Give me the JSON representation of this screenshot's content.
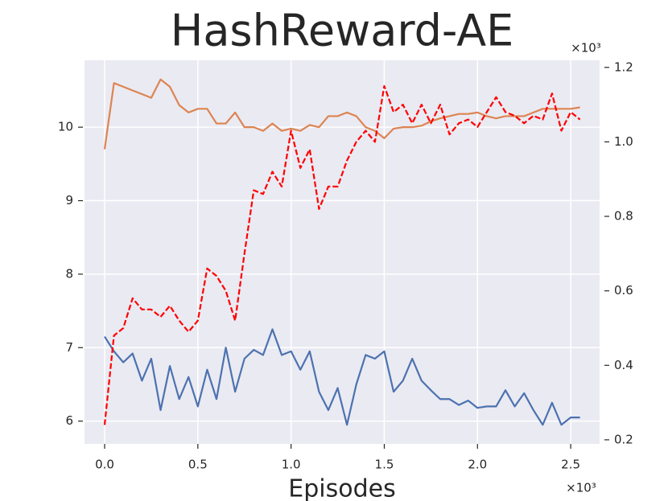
{
  "chart_data": {
    "type": "line",
    "title": "HashReward-AE",
    "x_label": "Episodes",
    "x_offset_label": "×10³",
    "y2_offset_label": "×10³",
    "x": [
      0,
      0.05,
      0.1,
      0.15,
      0.2,
      0.25,
      0.3,
      0.35,
      0.4,
      0.45,
      0.5,
      0.55,
      0.6,
      0.65,
      0.7,
      0.75,
      0.8,
      0.85,
      0.9,
      0.95,
      1.0,
      1.05,
      1.1,
      1.15,
      1.2,
      1.25,
      1.3,
      1.35,
      1.4,
      1.45,
      1.5,
      1.55,
      1.6,
      1.65,
      1.7,
      1.75,
      1.8,
      1.85,
      1.9,
      1.95,
      2.0,
      2.05,
      2.1,
      2.15,
      2.2,
      2.25,
      2.3,
      2.35,
      2.4,
      2.45,
      2.5,
      2.55
    ],
    "series": [
      {
        "color": "#4c72b0",
        "linestyle": "solid",
        "axis": "y",
        "values": [
          7.15,
          6.95,
          6.8,
          6.92,
          6.55,
          6.85,
          6.15,
          6.75,
          6.3,
          6.6,
          6.2,
          6.7,
          6.3,
          7.0,
          6.4,
          6.85,
          6.97,
          6.9,
          7.25,
          6.9,
          6.95,
          6.7,
          6.95,
          6.4,
          6.15,
          6.45,
          5.95,
          6.5,
          6.9,
          6.85,
          6.95,
          6.4,
          6.55,
          6.85,
          6.55,
          6.42,
          6.3,
          6.3,
          6.22,
          6.28,
          6.18,
          6.2,
          6.2,
          6.42,
          6.2,
          6.38,
          6.15,
          5.95,
          6.25,
          5.95,
          6.05,
          6.05
        ]
      },
      {
        "color": "#dd8452",
        "linestyle": "solid",
        "axis": "y",
        "values": [
          9.7,
          10.6,
          10.55,
          10.5,
          10.45,
          10.4,
          10.65,
          10.55,
          10.3,
          10.2,
          10.25,
          10.25,
          10.05,
          10.05,
          10.2,
          10.0,
          10.0,
          9.95,
          10.05,
          9.95,
          9.98,
          9.95,
          10.03,
          10.0,
          10.15,
          10.15,
          10.2,
          10.15,
          10.0,
          9.95,
          9.85,
          9.98,
          10.0,
          10.0,
          10.02,
          10.08,
          10.12,
          10.15,
          10.18,
          10.18,
          10.2,
          10.15,
          10.12,
          10.15,
          10.15,
          10.15,
          10.2,
          10.25,
          10.25,
          10.25,
          10.25,
          10.27
        ]
      },
      {
        "color": "#ff0000",
        "linestyle": "dashed",
        "axis": "y2",
        "values": [
          0.24,
          0.48,
          0.5,
          0.58,
          0.55,
          0.55,
          0.53,
          0.56,
          0.52,
          0.49,
          0.52,
          0.66,
          0.64,
          0.6,
          0.52,
          0.7,
          0.87,
          0.86,
          0.92,
          0.88,
          1.03,
          0.93,
          0.98,
          0.82,
          0.88,
          0.88,
          0.95,
          1.0,
          1.03,
          1.0,
          1.15,
          1.08,
          1.1,
          1.05,
          1.1,
          1.05,
          1.1,
          1.02,
          1.05,
          1.06,
          1.04,
          1.08,
          1.12,
          1.08,
          1.07,
          1.05,
          1.07,
          1.06,
          1.13,
          1.03,
          1.08,
          1.06
        ]
      }
    ],
    "xlim": [
      -0.108,
      2.655
    ],
    "xticks": [
      {
        "value": 0,
        "label": "0.0"
      },
      0.5,
      {
        "value": 1,
        "label": "1.0"
      },
      1.5,
      {
        "value": 2,
        "label": "2.0"
      },
      2.5
    ],
    "ylim": [
      5.69,
      10.91
    ],
    "yticks": [
      6,
      7,
      8,
      9,
      10
    ],
    "y2lim": [
      0.189,
      1.219
    ],
    "y2ticks": [
      0.2,
      0.4,
      0.6,
      0.8,
      {
        "value": 1,
        "label": "1.0"
      },
      1.2
    ],
    "grid": true
  }
}
